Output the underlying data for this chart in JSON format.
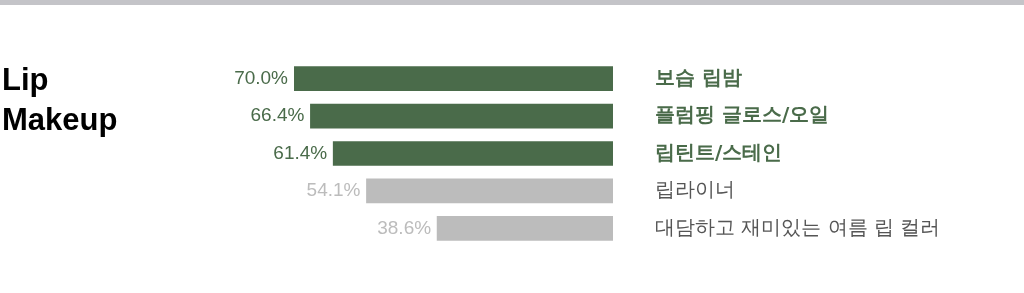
{
  "chart_data": {
    "type": "bar",
    "orientation": "horizontal",
    "title": "Lip\nMakeup",
    "categories": [
      "보습 립밤",
      "플럼핑 글로스/오일",
      "립틴트/스테인",
      "립라이너",
      "대담하고 재미있는 여름 립 컬러"
    ],
    "values": [
      70.0,
      66.4,
      61.4,
      54.1,
      38.6
    ],
    "colors": [
      "#4a6b4a",
      "#4a6b4a",
      "#4a6b4a",
      "#bcbcbc",
      "#bcbcbc"
    ],
    "value_labels": [
      "70.0%",
      "66.4%",
      "61.4%",
      "54.1%",
      "38.6%"
    ],
    "tick_labels": "y",
    "legend": false
  }
}
